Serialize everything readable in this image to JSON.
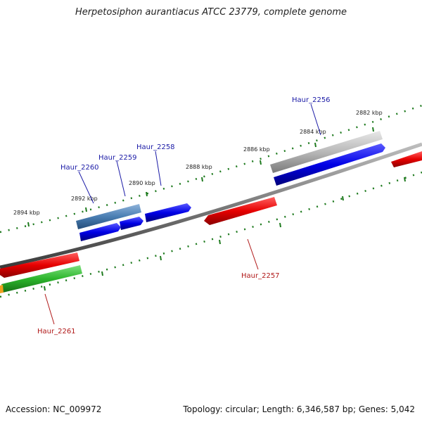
{
  "title": "Herpetosiphon aurantiacus ATCC 23779, complete genome",
  "footer": {
    "accession": "Accession: NC_009972",
    "summary": "Topology: circular; Length: 6,346,587 bp; Genes: 5,042"
  },
  "positions": [
    {
      "label": "2882 kbp"
    },
    {
      "label": "2884 kbp"
    },
    {
      "label": "2886 kbp"
    },
    {
      "label": "2888 kbp"
    },
    {
      "label": "2890 kbp"
    },
    {
      "label": "2892 kbp"
    },
    {
      "label": "2894 kbp"
    }
  ],
  "genes": [
    {
      "name": "Haur_2256",
      "color": "#1a1aa6"
    },
    {
      "name": "Haur_2257",
      "color": "#b01818"
    },
    {
      "name": "Haur_2258",
      "color": "#1a1aa6"
    },
    {
      "name": "Haur_2259",
      "color": "#1a1aa6"
    },
    {
      "name": "Haur_2260",
      "color": "#1a1aa6"
    },
    {
      "name": "Haur_2261",
      "color": "#b01818"
    }
  ],
  "colors": {
    "forward_cds": "#1010e0",
    "reverse_cds": "#e01010",
    "gc_skew_green": "#2cb52c",
    "highlight_steelblue": "#4a7eb3",
    "pseudo_gray": "#b8b8b8",
    "backbone": "#7a7a7a",
    "ticks": "#1e7a1e"
  }
}
